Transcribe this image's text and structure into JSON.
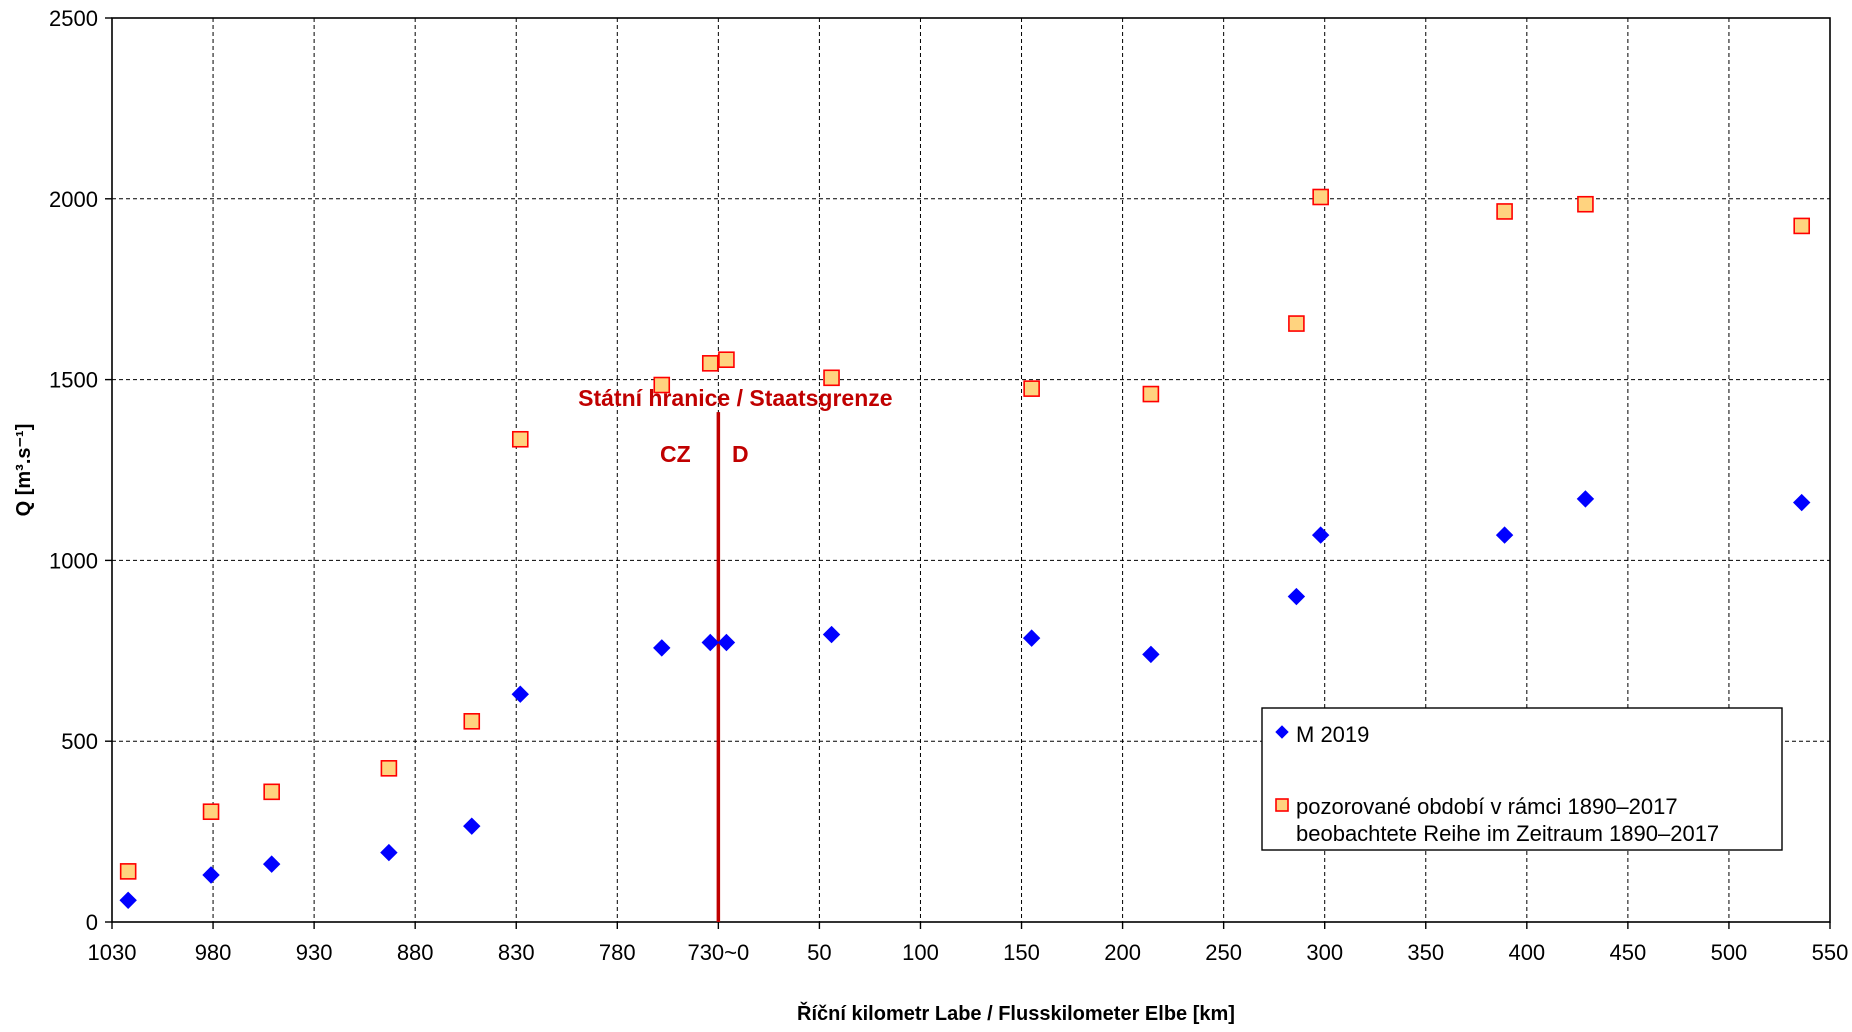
{
  "chart_data": {
    "type": "scatter",
    "xlabel": "Říční kilometr Labe / Flusskilometer Elbe [km]",
    "ylabel": "Q [m³.s⁻¹]",
    "ylim": [
      0,
      2500
    ],
    "yticks": [
      0,
      500,
      1000,
      1500,
      2000,
      2500
    ],
    "xaxis": {
      "note": "broken axis: Czech river km descending 1030 to 730, joined to German river km ascending 0 to 550",
      "tick_labels": [
        "1030",
        "980",
        "930",
        "880",
        "830",
        "780",
        "730~0",
        "50",
        "100",
        "150",
        "200",
        "250",
        "300",
        "350",
        "400",
        "450",
        "500",
        "550"
      ],
      "left_range_km": [
        1030,
        730
      ],
      "right_range_km": [
        0,
        550
      ]
    },
    "grid": true,
    "legend_position": "bottom-right",
    "series": [
      {
        "name": "M 2019",
        "marker": "diamond",
        "color": "#0000ff",
        "points": [
          {
            "x": "1022 (CZ)",
            "y": 60
          },
          {
            "x": "981 (CZ)",
            "y": 130
          },
          {
            "x": "951 (CZ)",
            "y": 160
          },
          {
            "x": "893 (CZ)",
            "y": 192
          },
          {
            "x": "852 (CZ)",
            "y": 265
          },
          {
            "x": "828 (CZ)",
            "y": 630
          },
          {
            "x": "758 (CZ)",
            "y": 758
          },
          {
            "x": "734 (CZ)",
            "y": 773
          },
          {
            "x": "4 (D)",
            "y": 773
          },
          {
            "x": "56 (D)",
            "y": 795
          },
          {
            "x": "155 (D)",
            "y": 785
          },
          {
            "x": "214 (D)",
            "y": 740
          },
          {
            "x": "286 (D)",
            "y": 900
          },
          {
            "x": "298 (D)",
            "y": 1070
          },
          {
            "x": "389 (D)",
            "y": 1070
          },
          {
            "x": "429 (D)",
            "y": 1170
          },
          {
            "x": "536 (D)",
            "y": 1160
          }
        ]
      },
      {
        "name": "pozorované období v rámci 1890–2017 / beobachtete Reihe im Zeitraum 1890–2017",
        "marker": "square",
        "color": "#ffd37f",
        "edge_color": "#ff0000",
        "points": [
          {
            "x": "1022 (CZ)",
            "y": 140
          },
          {
            "x": "981 (CZ)",
            "y": 305
          },
          {
            "x": "951 (CZ)",
            "y": 360
          },
          {
            "x": "893 (CZ)",
            "y": 425
          },
          {
            "x": "852 (CZ)",
            "y": 555
          },
          {
            "x": "828 (CZ)",
            "y": 1335
          },
          {
            "x": "758 (CZ)",
            "y": 1485
          },
          {
            "x": "734 (CZ)",
            "y": 1545
          },
          {
            "x": "4 (D)",
            "y": 1555
          },
          {
            "x": "56 (D)",
            "y": 1505
          },
          {
            "x": "155 (D)",
            "y": 1475
          },
          {
            "x": "214 (D)",
            "y": 1460
          },
          {
            "x": "286 (D)",
            "y": 1655
          },
          {
            "x": "298 (D)",
            "y": 2005
          },
          {
            "x": "389 (D)",
            "y": 1965
          },
          {
            "x": "429 (D)",
            "y": 1985
          },
          {
            "x": "536 (D)",
            "y": 1925
          }
        ]
      }
    ],
    "legend": {
      "entries": [
        {
          "label": "M 2019",
          "marker": "diamond"
        },
        {
          "label_line1": "pozorované období v rámci 1890–2017",
          "label_line2": "beobachtete Reihe im Zeitraum 1890–2017",
          "marker": "square"
        }
      ]
    },
    "annotations": {
      "border_label": "Státní hranice / Staatsgrenze",
      "left_side": "CZ",
      "right_side": "D",
      "border_color": "#c00000"
    }
  }
}
